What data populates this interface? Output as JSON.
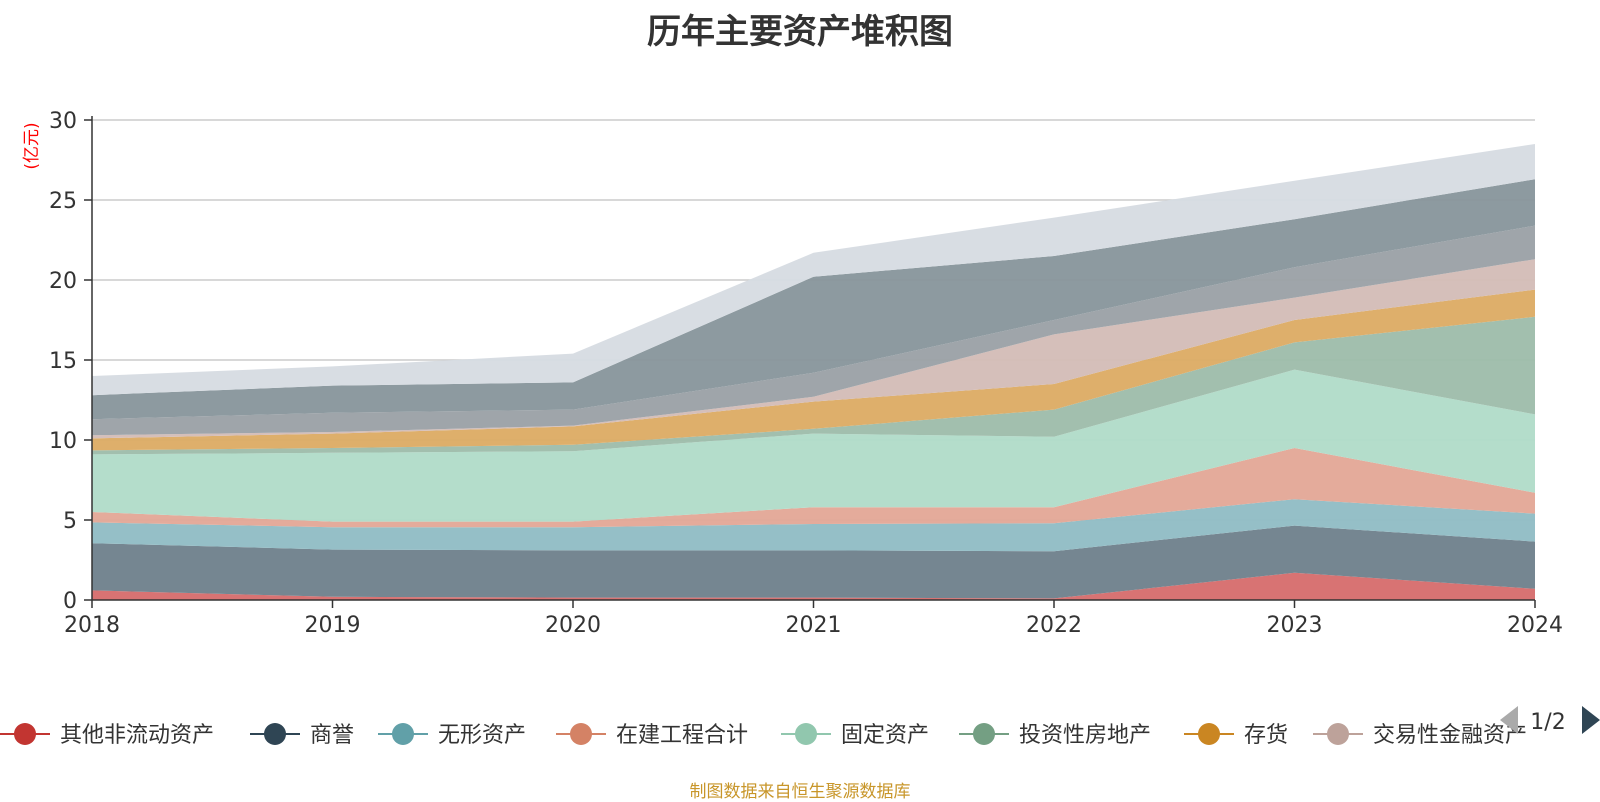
{
  "chart_data": {
    "type": "area",
    "stacked": true,
    "title": "历年主要资产堆积图",
    "ylabel": "(亿元)",
    "xlabel": "",
    "x": [
      "2018",
      "2019",
      "2020",
      "2021",
      "2022",
      "2023",
      "2024"
    ],
    "ylim": [
      0,
      30
    ],
    "yticks": [
      0,
      5,
      10,
      15,
      20,
      25,
      30
    ],
    "grid": true,
    "legend_position": "bottom",
    "series": [
      {
        "name": "其他非流动资产",
        "color": "#d66b6b",
        "marker_color": "#c23531",
        "values": [
          0.6,
          0.2,
          0.15,
          0.15,
          0.1,
          1.7,
          0.7
        ]
      },
      {
        "name": "商誉",
        "color": "#6e7f8b",
        "marker_color": "#2f4554",
        "values": [
          2.95,
          2.95,
          2.95,
          2.95,
          2.95,
          2.95,
          2.95
        ]
      },
      {
        "name": "无形资产",
        "color": "#8fbcc4",
        "marker_color": "#61a0a8",
        "values": [
          1.3,
          1.4,
          1.45,
          1.65,
          1.75,
          1.65,
          1.75
        ]
      },
      {
        "name": "在建工程合计",
        "color": "#e3a796",
        "marker_color": "#d48265",
        "values": [
          0.65,
          0.35,
          0.35,
          1.05,
          1.0,
          3.2,
          1.3
        ]
      },
      {
        "name": "固定资产",
        "color": "#b0dbc8",
        "marker_color": "#91c7ae",
        "values": [
          3.6,
          4.3,
          4.4,
          4.6,
          4.4,
          4.9,
          4.9
        ]
      },
      {
        "name": "投资性房地产",
        "color": "#9dbcaa",
        "marker_color": "#749f83",
        "values": [
          0.25,
          0.3,
          0.4,
          0.3,
          1.7,
          1.7,
          6.1
        ]
      },
      {
        "name": "存货",
        "color": "#dcab63",
        "marker_color": "#ca8622",
        "values": [
          0.75,
          0.9,
          1.15,
          1.7,
          1.6,
          1.4,
          1.7
        ]
      },
      {
        "name": "交易性金融资产",
        "color": "#d3bcb6",
        "marker_color": "#bda29a",
        "values": [
          0.2,
          0.1,
          0.05,
          0.3,
          3.1,
          1.4,
          1.9
        ]
      },
      {
        "name": "",
        "color": "#9aa0a5",
        "marker_color": "#9aa0a5",
        "values": [
          1.0,
          1.2,
          1.0,
          1.5,
          0.9,
          1.9,
          2.1
        ]
      },
      {
        "name": "",
        "color": "#87959b",
        "marker_color": "#87959b",
        "values": [
          1.5,
          1.7,
          1.7,
          6.0,
          4.0,
          3.0,
          2.9
        ]
      },
      {
        "name": "",
        "color": "#d6dbe1",
        "marker_color": "#d6dbe1",
        "values": [
          1.2,
          1.2,
          1.8,
          1.5,
          2.4,
          2.4,
          2.2
        ]
      }
    ]
  },
  "legend": {
    "items": [
      "其他非流动资产",
      "商誉",
      "无形资产",
      "在建工程合计",
      "固定资产",
      "投资性房地产",
      "存货",
      "交易性金融资产"
    ],
    "page_indicator": "1/2"
  },
  "footer": {
    "source": "制图数据来自恒生聚源数据库"
  },
  "colors": {
    "title": "#333333",
    "axis": "#333333",
    "grid": "#cccccc",
    "ylabel": "#ff0000",
    "source": "#c8962a"
  }
}
